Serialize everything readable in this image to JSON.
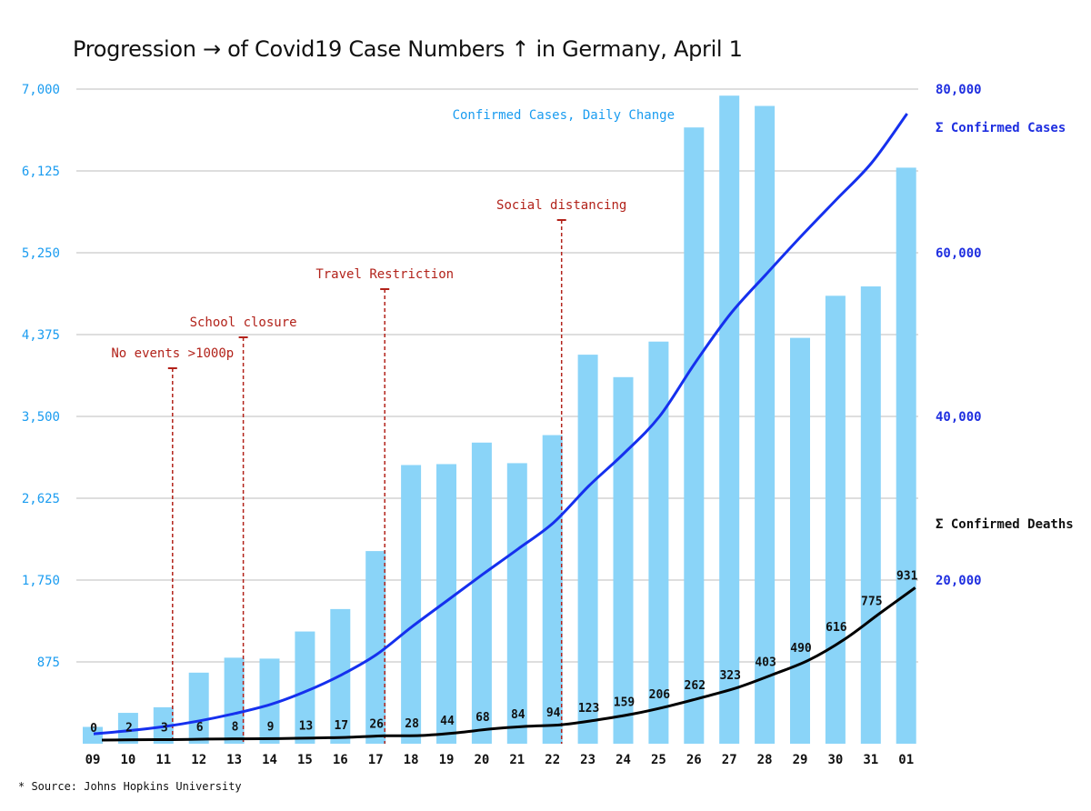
{
  "title": "Progression → of Covid19 Case Numbers ↑ in Germany, April 1",
  "source": "* Source: Johns Hopkins University",
  "colors": {
    "bars": "#8ad4f8",
    "left_axis": "#1a9cf0",
    "right_axis": "#1f2fe0",
    "cases_line": "#1530ee",
    "deaths_line": "#000000",
    "annotation": "#b2221a",
    "grid": "#bdbdbd"
  },
  "chart_data": {
    "type": "bar",
    "categories": [
      "09",
      "10",
      "11",
      "12",
      "13",
      "14",
      "15",
      "16",
      "17",
      "18",
      "19",
      "20",
      "21",
      "22",
      "23",
      "24",
      "25",
      "26",
      "27",
      "28",
      "29",
      "30",
      "31",
      "01"
    ],
    "left_axis": {
      "ylim": [
        0,
        7000
      ],
      "ticks": [
        875,
        1750,
        2625,
        3500,
        4375,
        5250,
        6125,
        7000
      ],
      "tick_labels": [
        "875",
        "1,750",
        "2,625",
        "3,500",
        "4,375",
        "5,250",
        "6,125",
        "7,000"
      ]
    },
    "right_axis": {
      "ylim": [
        0,
        80000
      ],
      "ticks": [
        20000,
        40000,
        60000,
        80000
      ],
      "tick_labels": [
        "20,000",
        "40,000",
        "60,000",
        "80,000"
      ]
    },
    "grid": true,
    "series": [
      {
        "name": "Confirmed Cases, Daily Change",
        "type": "bar",
        "axis": "left",
        "values": [
          180,
          330,
          390,
          760,
          920,
          910,
          1200,
          1440,
          2060,
          2980,
          2990,
          3220,
          3000,
          3300,
          4160,
          3920,
          4300,
          6590,
          6930,
          6820,
          4340,
          4790,
          4890,
          6160
        ]
      },
      {
        "name": "Σ Confirmed Cases",
        "type": "line",
        "axis": "right",
        "values": [
          1200,
          1600,
          2100,
          2800,
          3700,
          4800,
          6400,
          8400,
          10900,
          14300,
          17500,
          20700,
          23800,
          27000,
          31500,
          35500,
          40000,
          46500,
          52500,
          57300,
          62000,
          66500,
          71000,
          77000
        ]
      },
      {
        "name": "Σ Confirmed Deaths",
        "type": "line",
        "axis": "right",
        "values": [
          0,
          2,
          3,
          6,
          8,
          9,
          13,
          17,
          26,
          28,
          44,
          68,
          84,
          94,
          123,
          159,
          206,
          262,
          323,
          403,
          490,
          616,
          775,
          931
        ],
        "labels": [
          "0",
          "2",
          "3",
          "6",
          "8",
          "9",
          "13",
          "17",
          "26",
          "28",
          "44",
          "68",
          "84",
          "94",
          "123",
          "159",
          "206",
          "262",
          "323",
          "403",
          "490",
          "616",
          "775",
          "931"
        ]
      }
    ],
    "annotations": [
      {
        "text": "No events >1000p",
        "category": "11"
      },
      {
        "text": "School closure",
        "category": "13"
      },
      {
        "text": "Travel Restriction",
        "category": "17"
      },
      {
        "text": "Social distancing",
        "category": "22"
      }
    ]
  }
}
